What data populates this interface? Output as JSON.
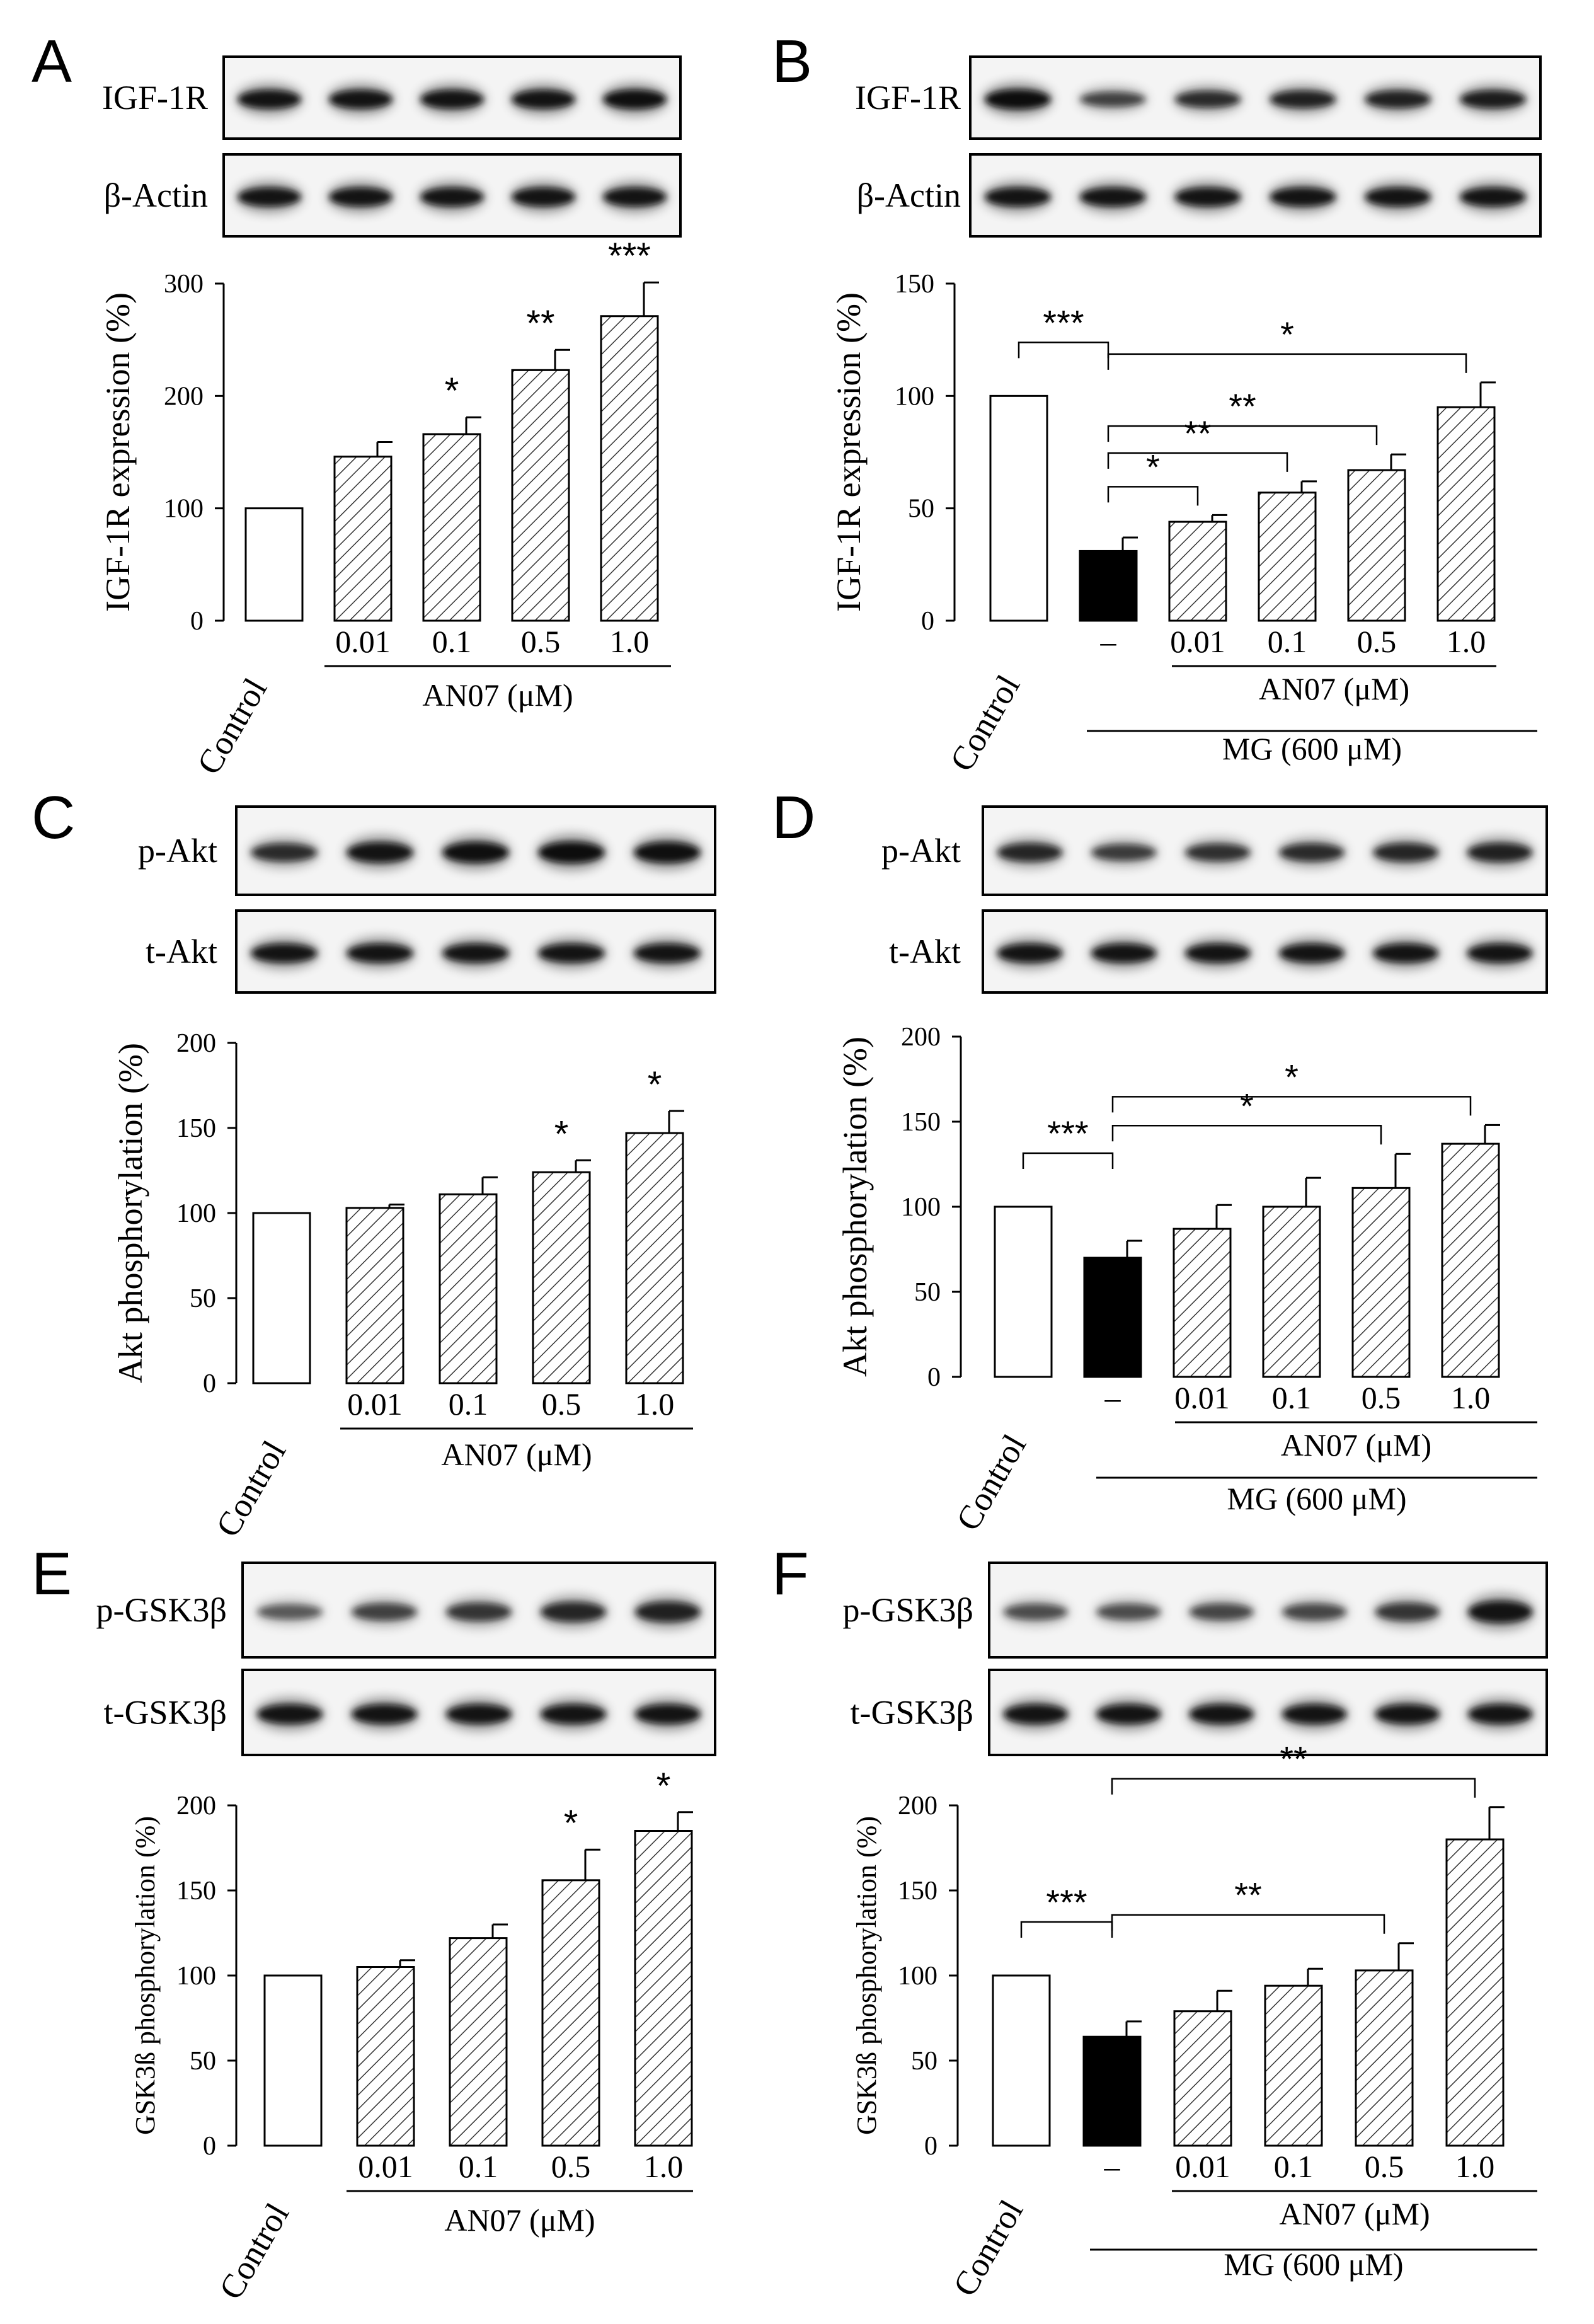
{
  "figure": {
    "pattern_color": "#333333",
    "control_fill": "#ffffff",
    "mg_fill": "#000000",
    "stroke_color": "#000000"
  },
  "panels": [
    {
      "letter": "A",
      "blot_labels": [
        "IGF-1R",
        "β-Actin"
      ],
      "ylabel": "IGF-1R expression (%)",
      "ylabel_style": "normal",
      "ylim": [
        0,
        300
      ],
      "yticks": [
        "0",
        "100",
        "200",
        "300"
      ],
      "group_label": "AN07 (μM)",
      "mg_label": null,
      "chart_data": {
        "type": "bar",
        "categories": [
          "Control",
          "0.01",
          "0.1",
          "0.5",
          "1.0"
        ],
        "values": [
          100,
          146,
          166,
          223,
          271
        ],
        "errors": [
          0,
          13,
          15,
          18,
          30
        ],
        "fills": [
          "white",
          "hatch",
          "hatch",
          "hatch",
          "hatch"
        ],
        "significance": [
          "",
          "",
          "*",
          "**",
          "***"
        ],
        "brackets": []
      }
    },
    {
      "letter": "B",
      "blot_labels": [
        "IGF-1R",
        "β-Actin"
      ],
      "ylabel": "IGF-1R expression (%)",
      "ylabel_style": "normal",
      "ylim": [
        0,
        150
      ],
      "yticks": [
        "0",
        "50",
        "100",
        "150"
      ],
      "group_label": "AN07 (μM)",
      "mg_label": "MG (600 μM)",
      "chart_data": {
        "type": "bar",
        "categories": [
          "Control",
          "–",
          "0.01",
          "0.1",
          "0.5",
          "1.0"
        ],
        "values": [
          100,
          31,
          44,
          57,
          67,
          95
        ],
        "errors": [
          0,
          6,
          3,
          5,
          7,
          11
        ],
        "fills": [
          "white",
          "black",
          "hatch",
          "hatch",
          "hatch",
          "hatch"
        ],
        "significance": [
          "",
          "",
          "",
          "",
          "",
          ""
        ],
        "brackets": [
          {
            "from": 0,
            "to": 1,
            "label": "***"
          },
          {
            "from": 1,
            "to": 2,
            "label": "*"
          },
          {
            "from": 1,
            "to": 3,
            "label": "**"
          },
          {
            "from": 1,
            "to": 4,
            "label": "**"
          },
          {
            "from": 1,
            "to": 5,
            "label": "*"
          }
        ]
      }
    },
    {
      "letter": "C",
      "blot_labels": [
        "p-Akt",
        "t-Akt"
      ],
      "ylabel": "Akt phosphorylation (%)",
      "ylabel_style": "normal",
      "ylim": [
        0,
        200
      ],
      "yticks": [
        "0",
        "50",
        "100",
        "150",
        "200"
      ],
      "group_label": "AN07 (μM)",
      "mg_label": null,
      "chart_data": {
        "type": "bar",
        "categories": [
          "Control",
          "0.01",
          "0.1",
          "0.5",
          "1.0"
        ],
        "values": [
          100,
          103,
          111,
          124,
          147
        ],
        "errors": [
          0,
          2,
          10,
          7,
          13
        ],
        "fills": [
          "white",
          "hatch",
          "hatch",
          "hatch",
          "hatch"
        ],
        "significance": [
          "",
          "",
          "",
          "*",
          "*"
        ],
        "brackets": []
      }
    },
    {
      "letter": "D",
      "blot_labels": [
        "p-Akt",
        "t-Akt"
      ],
      "ylabel": "Akt phosphorylation (%)",
      "ylabel_style": "normal",
      "ylim": [
        0,
        200
      ],
      "yticks": [
        "0",
        "50",
        "100",
        "150",
        "200"
      ],
      "group_label": "AN07 (μM)",
      "mg_label": "MG (600 μM)",
      "chart_data": {
        "type": "bar",
        "categories": [
          "Control",
          "–",
          "0.01",
          "0.1",
          "0.5",
          "1.0"
        ],
        "values": [
          100,
          70,
          87,
          100,
          111,
          137
        ],
        "errors": [
          0,
          10,
          14,
          17,
          20,
          11
        ],
        "fills": [
          "white",
          "black",
          "hatch",
          "hatch",
          "hatch",
          "hatch"
        ],
        "significance": [
          "",
          "",
          "",
          "",
          "",
          ""
        ],
        "brackets": [
          {
            "from": 0,
            "to": 1,
            "label": "***"
          },
          {
            "from": 1,
            "to": 4,
            "label": "*"
          },
          {
            "from": 1,
            "to": 5,
            "label": "*"
          }
        ]
      }
    },
    {
      "letter": "E",
      "blot_labels": [
        "p-GSK3β",
        "t-GSK3β"
      ],
      "ylabel": "GSK3ß phosphorylation (%)",
      "ylabel_style": "small",
      "ylim": [
        0,
        200
      ],
      "yticks": [
        "0",
        "50",
        "100",
        "150",
        "200"
      ],
      "group_label": "AN07 (μM)",
      "mg_label": null,
      "chart_data": {
        "type": "bar",
        "categories": [
          "Control",
          "0.01",
          "0.1",
          "0.5",
          "1.0"
        ],
        "values": [
          100,
          105,
          122,
          156,
          185
        ],
        "errors": [
          0,
          4,
          8,
          18,
          11
        ],
        "fills": [
          "white",
          "hatch",
          "hatch",
          "hatch",
          "hatch"
        ],
        "significance": [
          "",
          "",
          "",
          "*",
          "*"
        ],
        "brackets": []
      }
    },
    {
      "letter": "F",
      "blot_labels": [
        "p-GSK3β",
        "t-GSK3β"
      ],
      "ylabel": "GSK3ß phosphorylation (%)",
      "ylabel_style": "small",
      "ylim": [
        0,
        200
      ],
      "yticks": [
        "0",
        "50",
        "100",
        "150",
        "200"
      ],
      "group_label": "AN07 (μM)",
      "mg_label": "MG (600 μM)",
      "chart_data": {
        "type": "bar",
        "categories": [
          "Control",
          "–",
          "0.01",
          "0.1",
          "0.5",
          "1.0"
        ],
        "values": [
          100,
          64,
          79,
          94,
          103,
          180
        ],
        "errors": [
          0,
          9,
          12,
          10,
          16,
          19
        ],
        "fills": [
          "white",
          "black",
          "hatch",
          "hatch",
          "hatch",
          "hatch"
        ],
        "significance": [
          "",
          "",
          "",
          "",
          "",
          ""
        ],
        "brackets": [
          {
            "from": 0,
            "to": 1,
            "label": "***"
          },
          {
            "from": 1,
            "to": 4,
            "label": "**"
          },
          {
            "from": 1,
            "to": 5,
            "label": "**"
          }
        ]
      }
    }
  ]
}
